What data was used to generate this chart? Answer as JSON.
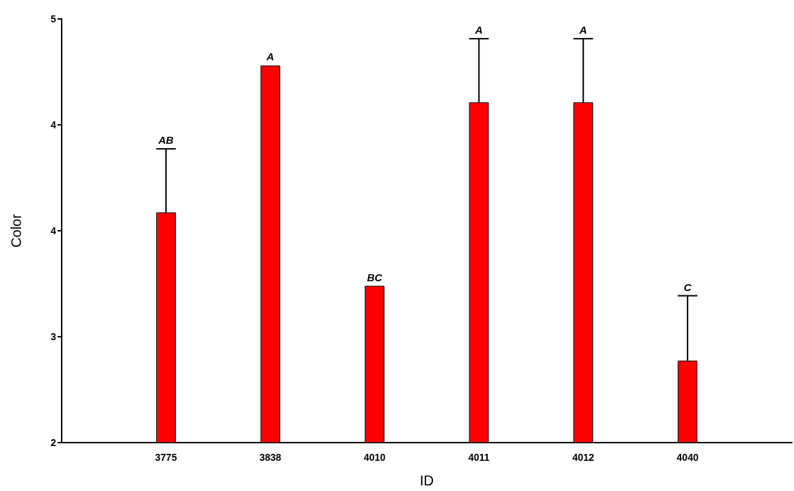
{
  "chart_data": {
    "type": "bar",
    "xlabel": "ID",
    "ylabel": "Color",
    "categories": [
      "3775",
      "3838",
      "4010",
      "4011",
      "4012",
      "4040"
    ],
    "values": [
      3.63,
      4.67,
      3.11,
      4.41,
      4.41,
      2.58
    ],
    "errors": [
      [
        3.63,
        4.08
      ],
      null,
      null,
      [
        4.41,
        4.86
      ],
      [
        4.41,
        4.86
      ],
      [
        2.58,
        3.04
      ]
    ],
    "color": "#ff0000",
    "ylim": [
      2,
      5
    ],
    "yticks": [
      {
        "value": 2,
        "label": "2"
      },
      {
        "value": 2.75,
        "label": "3"
      },
      {
        "value": 3.5,
        "label": "4"
      },
      {
        "value": 4.25,
        "label": "4"
      },
      {
        "value": 5,
        "label": "5"
      }
    ],
    "annotations": [
      {
        "text": "AB",
        "x": "3775",
        "y": 4.08
      },
      {
        "text": "A",
        "x": "3838",
        "y": 4.67
      },
      {
        "text": "BC",
        "x": "4010",
        "y": 3.11
      },
      {
        "text": "A",
        "x": "4011",
        "y": 4.86
      },
      {
        "text": "A",
        "x": "4012",
        "y": 4.86
      },
      {
        "text": "C",
        "x": "4040",
        "y": 3.04
      }
    ],
    "grid": false
  }
}
